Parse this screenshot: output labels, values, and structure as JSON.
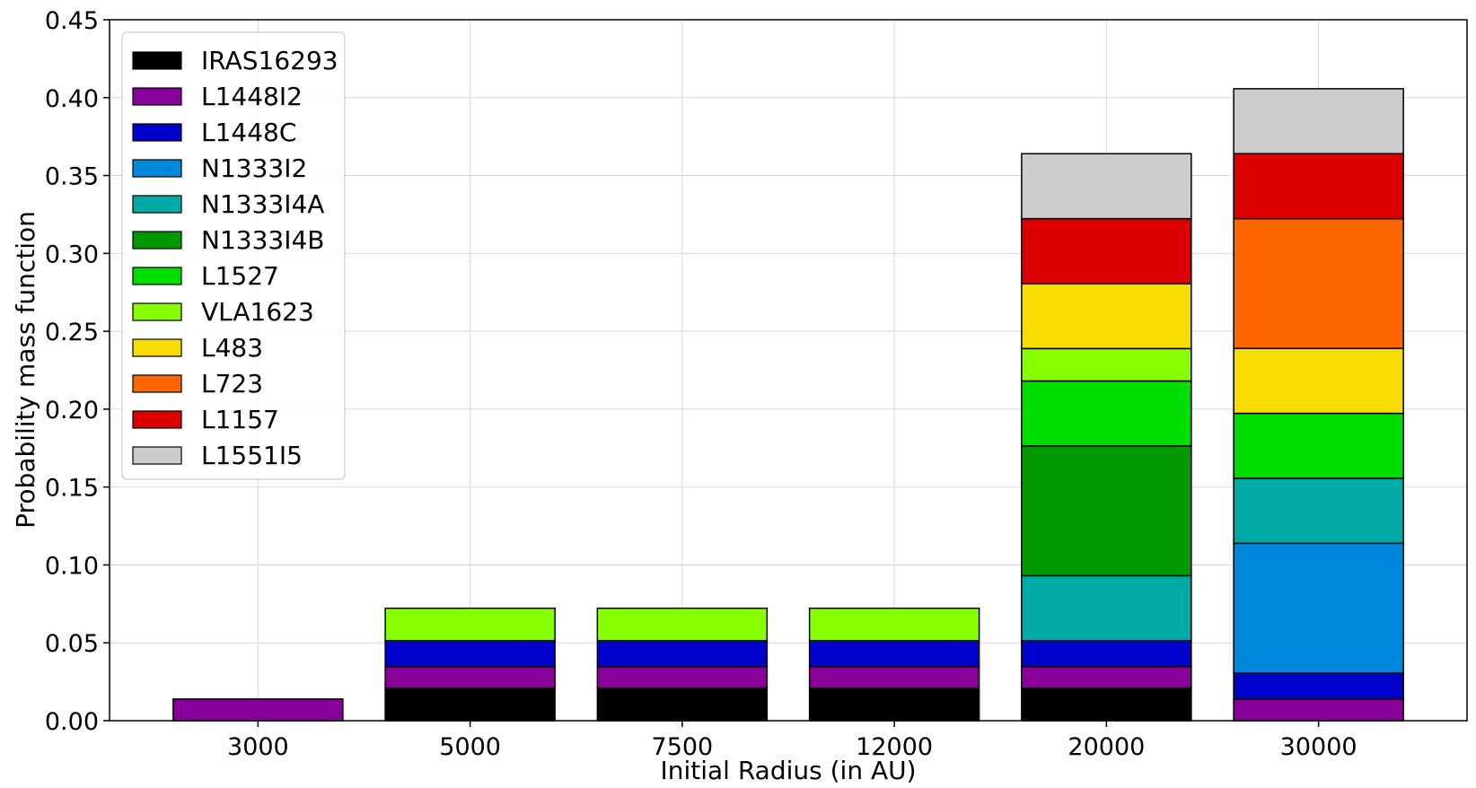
{
  "chart_data": {
    "type": "bar",
    "stacked": true,
    "xlabel": "Initial Radius (in AU)",
    "ylabel": "Probability mass function",
    "ylim": [
      0,
      0.45
    ],
    "yticks": [
      "0.00",
      "0.05",
      "0.10",
      "0.15",
      "0.20",
      "0.25",
      "0.30",
      "0.35",
      "0.40",
      "0.45"
    ],
    "categories": [
      "3000",
      "5000",
      "7500",
      "12000",
      "20000",
      "30000"
    ],
    "grid": true,
    "legend_position": "top-left",
    "series": [
      {
        "name": "IRAS16293",
        "color": "#000000",
        "values": [
          0,
          0.0208,
          0.0208,
          0.0208,
          0.0208,
          0
        ]
      },
      {
        "name": "L1448I2",
        "color": "#880099",
        "values": [
          0.0139,
          0.0139,
          0.0139,
          0.0139,
          0.0139,
          0.0139
        ]
      },
      {
        "name": "L1448C",
        "color": "#0000cc",
        "values": [
          0,
          0.0167,
          0.0167,
          0.0167,
          0.0167,
          0.0167
        ]
      },
      {
        "name": "N1333I2",
        "color": "#0088dd",
        "values": [
          0,
          0,
          0,
          0,
          0,
          0.0833
        ]
      },
      {
        "name": "N1333I4A",
        "color": "#00aaa6",
        "values": [
          0,
          0,
          0,
          0,
          0.0417,
          0.0417
        ]
      },
      {
        "name": "N1333I4B",
        "color": "#009900",
        "values": [
          0,
          0,
          0,
          0,
          0.0833,
          0
        ]
      },
      {
        "name": "L1527",
        "color": "#00dd00",
        "values": [
          0,
          0,
          0,
          0,
          0.0417,
          0.0417
        ]
      },
      {
        "name": "VLA1623",
        "color": "#88ff00",
        "values": [
          0,
          0.0208,
          0.0208,
          0.0208,
          0.0208,
          0
        ]
      },
      {
        "name": "L483",
        "color": "#f7dc00",
        "values": [
          0,
          0,
          0,
          0,
          0.0417,
          0.0417
        ]
      },
      {
        "name": "L723",
        "color": "#ff6600",
        "values": [
          0,
          0,
          0,
          0,
          0,
          0.0833
        ]
      },
      {
        "name": "L1157",
        "color": "#dd0000",
        "values": [
          0,
          0,
          0,
          0,
          0.0417,
          0.0417
        ]
      },
      {
        "name": "L1551I5",
        "color": "#cccccc",
        "values": [
          0,
          0,
          0,
          0,
          0.0417,
          0.0417
        ]
      }
    ]
  }
}
